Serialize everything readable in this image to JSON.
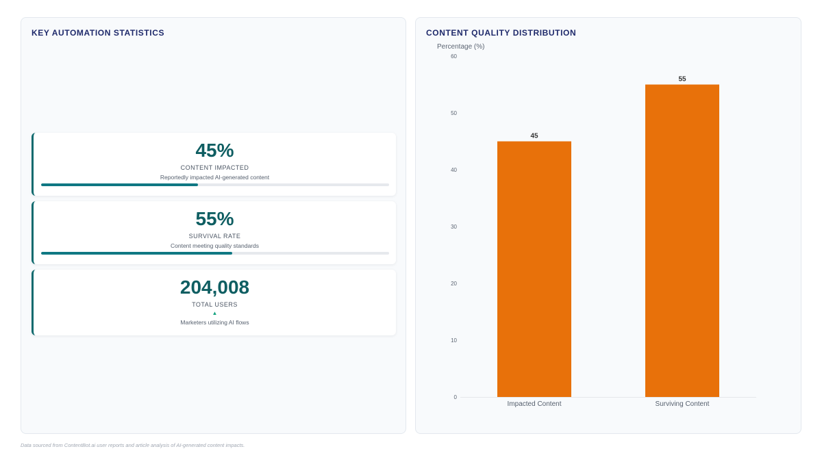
{
  "left_panel": {
    "title": "KEY AUTOMATION STATISTICS",
    "stats": [
      {
        "value": "45%",
        "label": "CONTENT IMPACTED",
        "description": "Reportedly impacted AI-generated content",
        "progress": 0.45
      },
      {
        "value": "55%",
        "label": "SURVIVAL RATE",
        "description": "Content meeting quality standards",
        "progress": 0.55
      },
      {
        "value": "204,008",
        "label": "TOTAL USERS",
        "trend_icon": "▲",
        "description": "Marketers utilizing AI flows"
      }
    ]
  },
  "right_panel": {
    "title": "CONTENT QUALITY DISTRIBUTION"
  },
  "chart_data": {
    "type": "bar",
    "categories": [
      "Impacted Content",
      "Surviving Content"
    ],
    "values": [
      45,
      55
    ],
    "data_labels": [
      "45",
      "55"
    ],
    "ylabel": "Percentage (%)",
    "ylim": [
      0,
      60
    ],
    "yticks": [
      0,
      10,
      20,
      30,
      40,
      50,
      60
    ],
    "grid": false,
    "legend": "none",
    "bar_color": "#e8710a"
  },
  "footer": "Data sourced from ContentBot.ai user reports and article analysis of AI-generated content impacts."
}
